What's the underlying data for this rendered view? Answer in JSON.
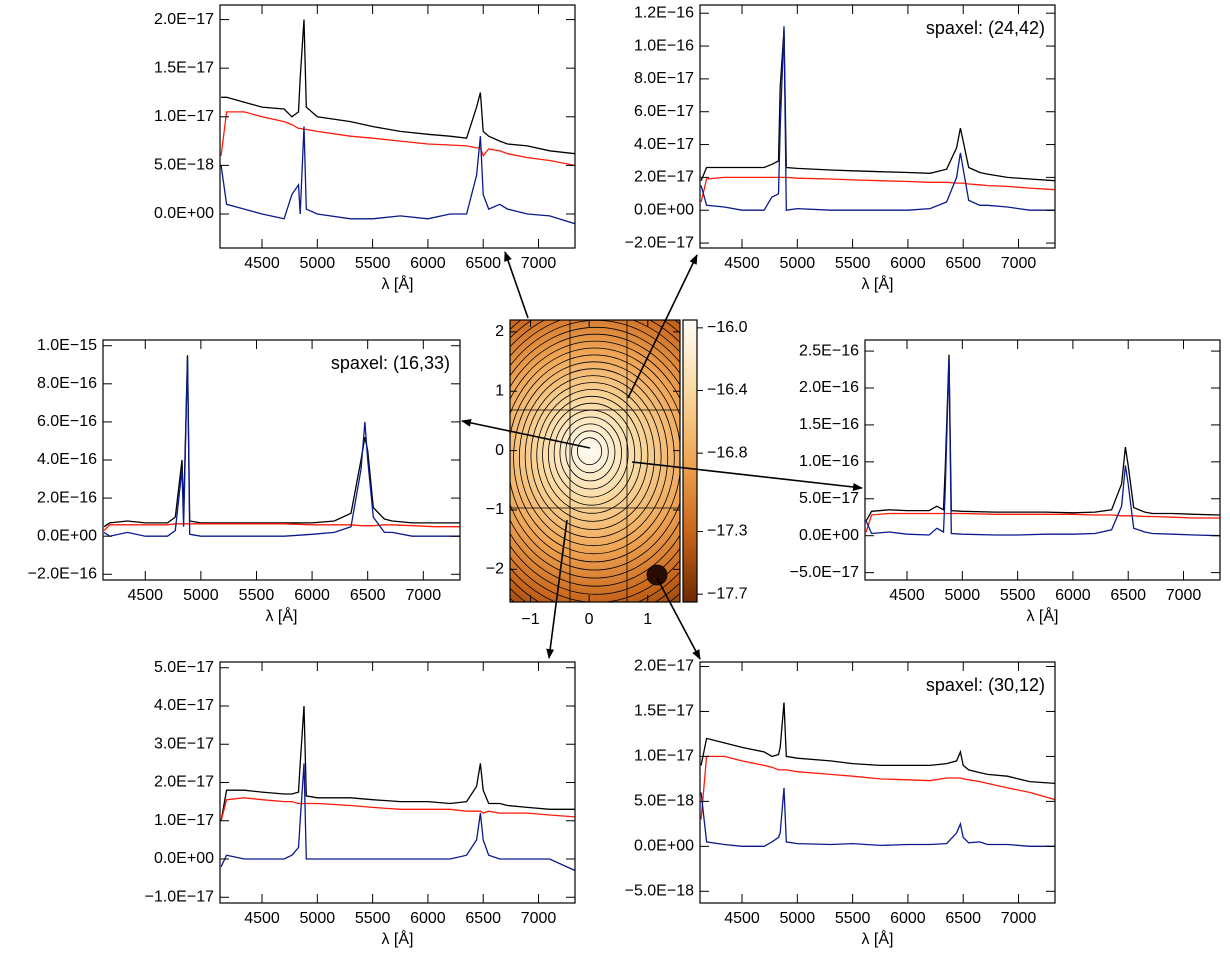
{
  "chart_data": [
    {
      "type": "line",
      "xlabel": "λ [Å]",
      "x": [
        4130,
        4180,
        4340,
        4500,
        4700,
        4770,
        4830,
        4845,
        4880,
        4900,
        5000,
        5300,
        5500,
        5750,
        6000,
        6200,
        6350,
        6440,
        6475,
        6500,
        6550,
        6650,
        6720,
        6900,
        7100,
        7330
      ],
      "xlim": [
        4120,
        7330
      ],
      "xticks": [
        4500,
        5000,
        5500,
        6000,
        6500,
        7000
      ],
      "ylim": [
        -3.5e-18,
        2.15e-17
      ],
      "yticks": [
        {
          "value": 0,
          "label": "0.0E+00"
        },
        {
          "value": 5e-18,
          "label": "5.0E−18"
        },
        {
          "value": 1e-17,
          "label": "1.0E−17"
        },
        {
          "value": 1.5e-17,
          "label": "1.5E−17"
        },
        {
          "value": 2e-17,
          "label": "2.0E−17"
        }
      ],
      "series": [
        {
          "color": "#000000",
          "values": [
            1.2e-17,
            1.2e-17,
            1.15e-17,
            1.1e-17,
            1.08e-17,
            1e-17,
            1.05e-17,
            1.4e-17,
            2e-17,
            1.1e-17,
            1e-17,
            9.5e-18,
            9e-18,
            8.5e-18,
            8.2e-18,
            8e-18,
            7.8e-18,
            1.1e-17,
            1.25e-17,
            8.5e-18,
            8e-18,
            7.5e-18,
            7.2e-18,
            7e-18,
            6.5e-18,
            6.2e-18
          ]
        },
        {
          "color": "#ff1a0a",
          "values": [
            6e-18,
            1.05e-17,
            1.05e-17,
            1e-17,
            9.5e-18,
            9.2e-18,
            8.8e-18,
            8.8e-18,
            8.7e-18,
            8.7e-18,
            8.5e-18,
            8e-18,
            7.8e-18,
            7.5e-18,
            7.2e-18,
            7.1e-18,
            7e-18,
            6.8e-18,
            6.8e-18,
            6e-18,
            6.7e-18,
            6.5e-18,
            6.2e-18,
            5.8e-18,
            5.5e-18,
            5e-18
          ]
        },
        {
          "color": "#0a1a8c",
          "values": [
            5e-18,
            1e-18,
            5e-19,
            0,
            -5e-19,
            2e-18,
            3e-18,
            0,
            9e-18,
            5e-19,
            0,
            -5e-19,
            -5e-19,
            -2e-19,
            -5e-19,
            0,
            0,
            4e-18,
            8e-18,
            2e-18,
            5e-19,
            1e-18,
            5e-19,
            0,
            -2e-19,
            -1e-18
          ]
        }
      ]
    },
    {
      "type": "line",
      "xlabel": "λ [Å]",
      "annotation": "spaxel: (24,42)",
      "x": [
        4130,
        4180,
        4340,
        4500,
        4700,
        4770,
        4830,
        4845,
        4880,
        4900,
        5000,
        5300,
        5500,
        5750,
        6000,
        6200,
        6350,
        6440,
        6475,
        6500,
        6550,
        6650,
        6720,
        6900,
        7100,
        7330
      ],
      "xlim": [
        4120,
        7330
      ],
      "xticks": [
        4500,
        5000,
        5500,
        6000,
        6500,
        7000
      ],
      "ylim": [
        -2.3e-17,
        1.25e-16
      ],
      "yticks": [
        {
          "value": -2e-17,
          "label": "−2.0E−17"
        },
        {
          "value": 0,
          "label": "0.0E+00"
        },
        {
          "value": 2e-17,
          "label": "2.0E−17"
        },
        {
          "value": 4e-17,
          "label": "4.0E−17"
        },
        {
          "value": 6e-17,
          "label": "6.0E−17"
        },
        {
          "value": 8e-17,
          "label": "8.0E−17"
        },
        {
          "value": 1e-16,
          "label": "1.0E−16"
        },
        {
          "value": 1.2e-16,
          "label": "1.2E−16"
        }
      ],
      "series": [
        {
          "color": "#000000",
          "values": [
            1.8e-17,
            2.6e-17,
            2.6e-17,
            2.6e-17,
            2.6e-17,
            2.8e-17,
            3e-17,
            7.5e-17,
            1.1e-16,
            2.6e-17,
            2.55e-17,
            2.45e-17,
            2.4e-17,
            2.35e-17,
            2.3e-17,
            2.25e-17,
            2.5e-17,
            3.8e-17,
            5e-17,
            4.2e-17,
            2.6e-17,
            2.3e-17,
            2.2e-17,
            2e-17,
            1.9e-17,
            1.8e-17
          ]
        },
        {
          "color": "#ff1a0a",
          "values": [
            5e-18,
            1.9e-17,
            2e-17,
            2e-17,
            2e-17,
            2e-17,
            2e-17,
            2e-17,
            2e-17,
            2e-17,
            1.95e-17,
            1.9e-17,
            1.85e-17,
            1.8e-17,
            1.75e-17,
            1.7e-17,
            1.7e-17,
            1.65e-17,
            1.65e-17,
            1.65e-17,
            1.6e-17,
            1.55e-17,
            1.5e-17,
            1.45e-17,
            1.35e-17,
            1.25e-17
          ]
        },
        {
          "color": "#0a1a8c",
          "values": [
            1.5e-17,
            3e-18,
            2e-18,
            0,
            0,
            8e-18,
            1e-17,
            5e-17,
            1.12e-16,
            0,
            1e-18,
            0,
            0,
            0,
            0,
            1e-18,
            5e-18,
            2e-17,
            3.5e-17,
            2.5e-17,
            6e-18,
            3e-18,
            3e-18,
            2e-18,
            0,
            0
          ]
        }
      ]
    },
    {
      "type": "line",
      "xlabel": "λ [Å]",
      "annotation": "spaxel: (16,33)",
      "x": [
        4130,
        4180,
        4340,
        4500,
        4700,
        4770,
        4830,
        4845,
        4880,
        4900,
        5000,
        5300,
        5500,
        5750,
        6000,
        6200,
        6350,
        6440,
        6475,
        6500,
        6550,
        6650,
        6720,
        6900,
        7100,
        7330
      ],
      "xlim": [
        4120,
        7330
      ],
      "xticks": [
        4500,
        5000,
        5500,
        6000,
        6500,
        7000
      ],
      "ylim": [
        -2.3e-16,
        1.03e-15
      ],
      "yticks": [
        {
          "value": -2e-16,
          "label": "−2.0E−16"
        },
        {
          "value": 0,
          "label": "0.0E+00"
        },
        {
          "value": 2e-16,
          "label": "2.0E−16"
        },
        {
          "value": 4e-16,
          "label": "4.0E−16"
        },
        {
          "value": 6e-16,
          "label": "6.0E−16"
        },
        {
          "value": 8e-16,
          "label": "8.0E−16"
        },
        {
          "value": 1e-15,
          "label": "1.0E−15"
        }
      ],
      "series": [
        {
          "color": "#000000",
          "values": [
            5e-17,
            7e-17,
            8e-17,
            7e-17,
            7e-17,
            1e-16,
            4e-16,
            1.2e-16,
            9.5e-16,
            8e-17,
            7e-17,
            7e-17,
            7e-17,
            7e-17,
            7e-17,
            8e-17,
            1.2e-16,
            4e-16,
            5.2e-16,
            4.5e-16,
            1.5e-16,
            9e-17,
            8e-17,
            7e-17,
            7e-17,
            7e-17
          ]
        },
        {
          "color": "#ff1a0a",
          "values": [
            3e-17,
            6e-17,
            6e-17,
            6e-17,
            6e-17,
            6.5e-17,
            6.5e-17,
            6.5e-17,
            6.5e-17,
            6.5e-17,
            6.5e-17,
            6.5e-17,
            6.5e-17,
            6.5e-17,
            6e-17,
            6e-17,
            6e-17,
            5.5e-17,
            5.5e-17,
            5.5e-17,
            5.5e-17,
            6e-17,
            6e-17,
            5.5e-17,
            5e-17,
            5e-17
          ]
        },
        {
          "color": "#0a1a8c",
          "values": [
            2e-17,
            0,
            2e-17,
            0,
            0,
            3e-17,
            3.5e-16,
            5e-17,
            9.4e-16,
            1e-17,
            0,
            0,
            0,
            0,
            1e-17,
            2e-17,
            5e-17,
            3.5e-16,
            6e-16,
            4e-16,
            1e-16,
            2e-17,
            2e-17,
            0,
            0,
            0
          ]
        }
      ]
    },
    {
      "type": "line",
      "xlabel": "λ [Å]",
      "x": [
        4130,
        4180,
        4340,
        4500,
        4700,
        4770,
        4830,
        4845,
        4880,
        4900,
        5000,
        5300,
        5500,
        5750,
        6000,
        6200,
        6350,
        6440,
        6475,
        6500,
        6550,
        6650,
        6720,
        6900,
        7100,
        7330
      ],
      "xlim": [
        4120,
        7330
      ],
      "xticks": [
        4500,
        5000,
        5500,
        6000,
        6500,
        7000
      ],
      "ylim": [
        -6e-17,
        2.65e-16
      ],
      "yticks": [
        {
          "value": -5e-17,
          "label": "−5.0E−17"
        },
        {
          "value": 0,
          "label": "0.0E+00"
        },
        {
          "value": 5e-17,
          "label": "5.0E−17"
        },
        {
          "value": 1e-16,
          "label": "1.0E−16"
        },
        {
          "value": 1.5e-16,
          "label": "1.5E−16"
        },
        {
          "value": 2e-16,
          "label": "2.0E−16"
        },
        {
          "value": 2.5e-16,
          "label": "2.5E−16"
        }
      ],
      "series": [
        {
          "color": "#000000",
          "values": [
            2e-17,
            3.3e-17,
            3.5e-17,
            3.4e-17,
            3.4e-17,
            4e-17,
            3.5e-17,
            9e-17,
            2.45e-16,
            3.4e-17,
            3.3e-17,
            3.2e-17,
            3.2e-17,
            3.2e-17,
            3.1e-17,
            3.2e-17,
            3.5e-17,
            7e-17,
            1.2e-16,
            9.5e-17,
            3.8e-17,
            3.2e-17,
            3e-17,
            3e-17,
            2.9e-17,
            2.8e-17
          ]
        },
        {
          "color": "#ff1a0a",
          "values": [
            5e-18,
            2.8e-17,
            3e-17,
            3e-17,
            3e-17,
            3e-17,
            3e-17,
            3e-17,
            3e-17,
            3e-17,
            3e-17,
            2.9e-17,
            2.9e-17,
            2.9e-17,
            2.9e-17,
            2.8e-17,
            2.8e-17,
            2.7e-17,
            2.7e-17,
            2.7e-17,
            2.7e-17,
            2.6e-17,
            2.6e-17,
            2.5e-17,
            2.4e-17,
            2.4e-17
          ]
        },
        {
          "color": "#0a1a8c",
          "values": [
            2e-17,
            3e-18,
            5e-18,
            2e-18,
            1e-18,
            1e-17,
            5e-18,
            6e-17,
            2.4e-16,
            3e-18,
            2e-18,
            1e-18,
            1e-18,
            2e-18,
            2e-18,
            3e-18,
            8e-18,
            4e-17,
            9.5e-17,
            7e-17,
            1e-17,
            5e-18,
            3e-18,
            2e-18,
            1e-18,
            0
          ]
        }
      ]
    },
    {
      "type": "line",
      "xlabel": "λ [Å]",
      "x": [
        4130,
        4180,
        4340,
        4500,
        4700,
        4770,
        4830,
        4845,
        4880,
        4900,
        5000,
        5300,
        5500,
        5750,
        6000,
        6200,
        6350,
        6440,
        6475,
        6500,
        6550,
        6650,
        6720,
        6900,
        7100,
        7330
      ],
      "xlim": [
        4120,
        7330
      ],
      "xticks": [
        4500,
        5000,
        5500,
        6000,
        6500,
        7000
      ],
      "ylim": [
        -1.15e-17,
        5.15e-17
      ],
      "yticks": [
        {
          "value": -1e-17,
          "label": "−1.0E−17"
        },
        {
          "value": 0,
          "label": "0.0E+00"
        },
        {
          "value": 1e-17,
          "label": "1.0E−17"
        },
        {
          "value": 2e-17,
          "label": "2.0E−17"
        },
        {
          "value": 3e-17,
          "label": "3.0E−17"
        },
        {
          "value": 4e-17,
          "label": "4.0E−17"
        },
        {
          "value": 5e-17,
          "label": "5.0E−17"
        }
      ],
      "series": [
        {
          "color": "#000000",
          "values": [
            1e-17,
            1.8e-17,
            1.8e-17,
            1.75e-17,
            1.7e-17,
            1.7e-17,
            1.75e-17,
            2.5e-17,
            4e-17,
            1.65e-17,
            1.6e-17,
            1.6e-17,
            1.55e-17,
            1.5e-17,
            1.5e-17,
            1.45e-17,
            1.5e-17,
            1.9e-17,
            2.5e-17,
            1.8e-17,
            1.45e-17,
            1.45e-17,
            1.4e-17,
            1.35e-17,
            1.3e-17,
            1.3e-17
          ]
        },
        {
          "color": "#ff1a0a",
          "values": [
            1e-17,
            1.55e-17,
            1.6e-17,
            1.55e-17,
            1.5e-17,
            1.5e-17,
            1.45e-17,
            1.45e-17,
            1.45e-17,
            1.45e-17,
            1.45e-17,
            1.4e-17,
            1.35e-17,
            1.3e-17,
            1.3e-17,
            1.3e-17,
            1.25e-17,
            1.25e-17,
            1.25e-17,
            1.2e-17,
            1.25e-17,
            1.2e-17,
            1.2e-17,
            1.2e-17,
            1.15e-17,
            1.1e-17
          ]
        },
        {
          "color": "#0a1a8c",
          "values": [
            -2e-18,
            1e-18,
            0,
            0,
            0,
            1e-18,
            3e-18,
            1e-17,
            2.5e-17,
            0,
            0,
            0,
            0,
            0,
            0,
            0,
            1e-18,
            5e-18,
            1.2e-17,
            5e-18,
            1e-18,
            0,
            0,
            0,
            0,
            -3e-18
          ]
        }
      ]
    },
    {
      "type": "line",
      "xlabel": "λ [Å]",
      "annotation": "spaxel: (30,12)",
      "x": [
        4130,
        4180,
        4340,
        4500,
        4700,
        4770,
        4830,
        4845,
        4880,
        4900,
        5000,
        5300,
        5500,
        5750,
        6000,
        6200,
        6350,
        6440,
        6475,
        6500,
        6550,
        6650,
        6720,
        6900,
        7100,
        7330
      ],
      "xlim": [
        4120,
        7330
      ],
      "xticks": [
        4500,
        5000,
        5500,
        6000,
        6500,
        7000
      ],
      "ylim": [
        -6.3e-18,
        2.05e-17
      ],
      "yticks": [
        {
          "value": -5e-18,
          "label": "−5.0E−18"
        },
        {
          "value": 0,
          "label": "0.0E+00"
        },
        {
          "value": 5e-18,
          "label": "5.0E−18"
        },
        {
          "value": 1e-17,
          "label": "1.0E−17"
        },
        {
          "value": 1.5e-17,
          "label": "1.5E−17"
        },
        {
          "value": 2e-17,
          "label": "2.0E−17"
        }
      ],
      "series": [
        {
          "color": "#000000",
          "values": [
            9e-18,
            1.2e-17,
            1.15e-17,
            1.1e-17,
            1.05e-17,
            1e-17,
            1.02e-17,
            1.1e-17,
            1.6e-17,
            1e-17,
            9.8e-18,
            9.5e-18,
            9.2e-18,
            9e-18,
            9e-18,
            9e-18,
            9.2e-18,
            9.5e-18,
            1.05e-17,
            9e-18,
            8.5e-18,
            8.2e-18,
            8e-18,
            7.8e-18,
            7.2e-18,
            7e-18
          ]
        },
        {
          "color": "#ff1a0a",
          "values": [
            3e-18,
            1e-17,
            1e-17,
            9.5e-18,
            9e-18,
            8.8e-18,
            8.5e-18,
            8.5e-18,
            8.5e-18,
            8.5e-18,
            8.3e-18,
            8e-18,
            7.8e-18,
            7.5e-18,
            7.4e-18,
            7.3e-18,
            7.6e-18,
            7.6e-18,
            7.6e-18,
            7.5e-18,
            7.4e-18,
            7.2e-18,
            7e-18,
            6.5e-18,
            6e-18,
            5.2e-18
          ]
        },
        {
          "color": "#0a1a8c",
          "values": [
            6e-18,
            5e-19,
            2e-19,
            0,
            0,
            5e-19,
            1e-18,
            1.5e-18,
            6.5e-18,
            5e-19,
            3e-19,
            2e-19,
            3e-19,
            1e-19,
            2e-19,
            2e-19,
            3e-19,
            1.5e-18,
            2.5e-18,
            1e-18,
            4e-19,
            5e-19,
            2e-19,
            2e-19,
            0,
            0
          ]
        }
      ]
    },
    {
      "type": "map",
      "xlim": [
        -1.35,
        1.55
      ],
      "xticks": [
        {
          "value": -1,
          "label": "−1"
        },
        0,
        1
      ],
      "ylim": [
        -2.55,
        2.2
      ],
      "yticks": [
        {
          "value": -2,
          "label": "−2"
        },
        {
          "value": -1,
          "label": "−1"
        },
        0,
        1,
        2
      ],
      "colorbar": {
        "lim": [
          -17.75,
          -15.95
        ],
        "ticks": [
          {
            "value": -16.0,
            "label": "−16.0"
          },
          {
            "value": -16.4,
            "label": "−16.4"
          },
          {
            "value": -16.8,
            "label": "−16.8"
          },
          {
            "value": -17.3,
            "label": "−17.3"
          },
          {
            "value": -17.7,
            "label": "−17.7"
          }
        ],
        "colors": [
          "#6e2a00",
          "#c8661c",
          "#efa554",
          "#f9d9a0",
          "#fffdf6"
        ]
      }
    }
  ]
}
